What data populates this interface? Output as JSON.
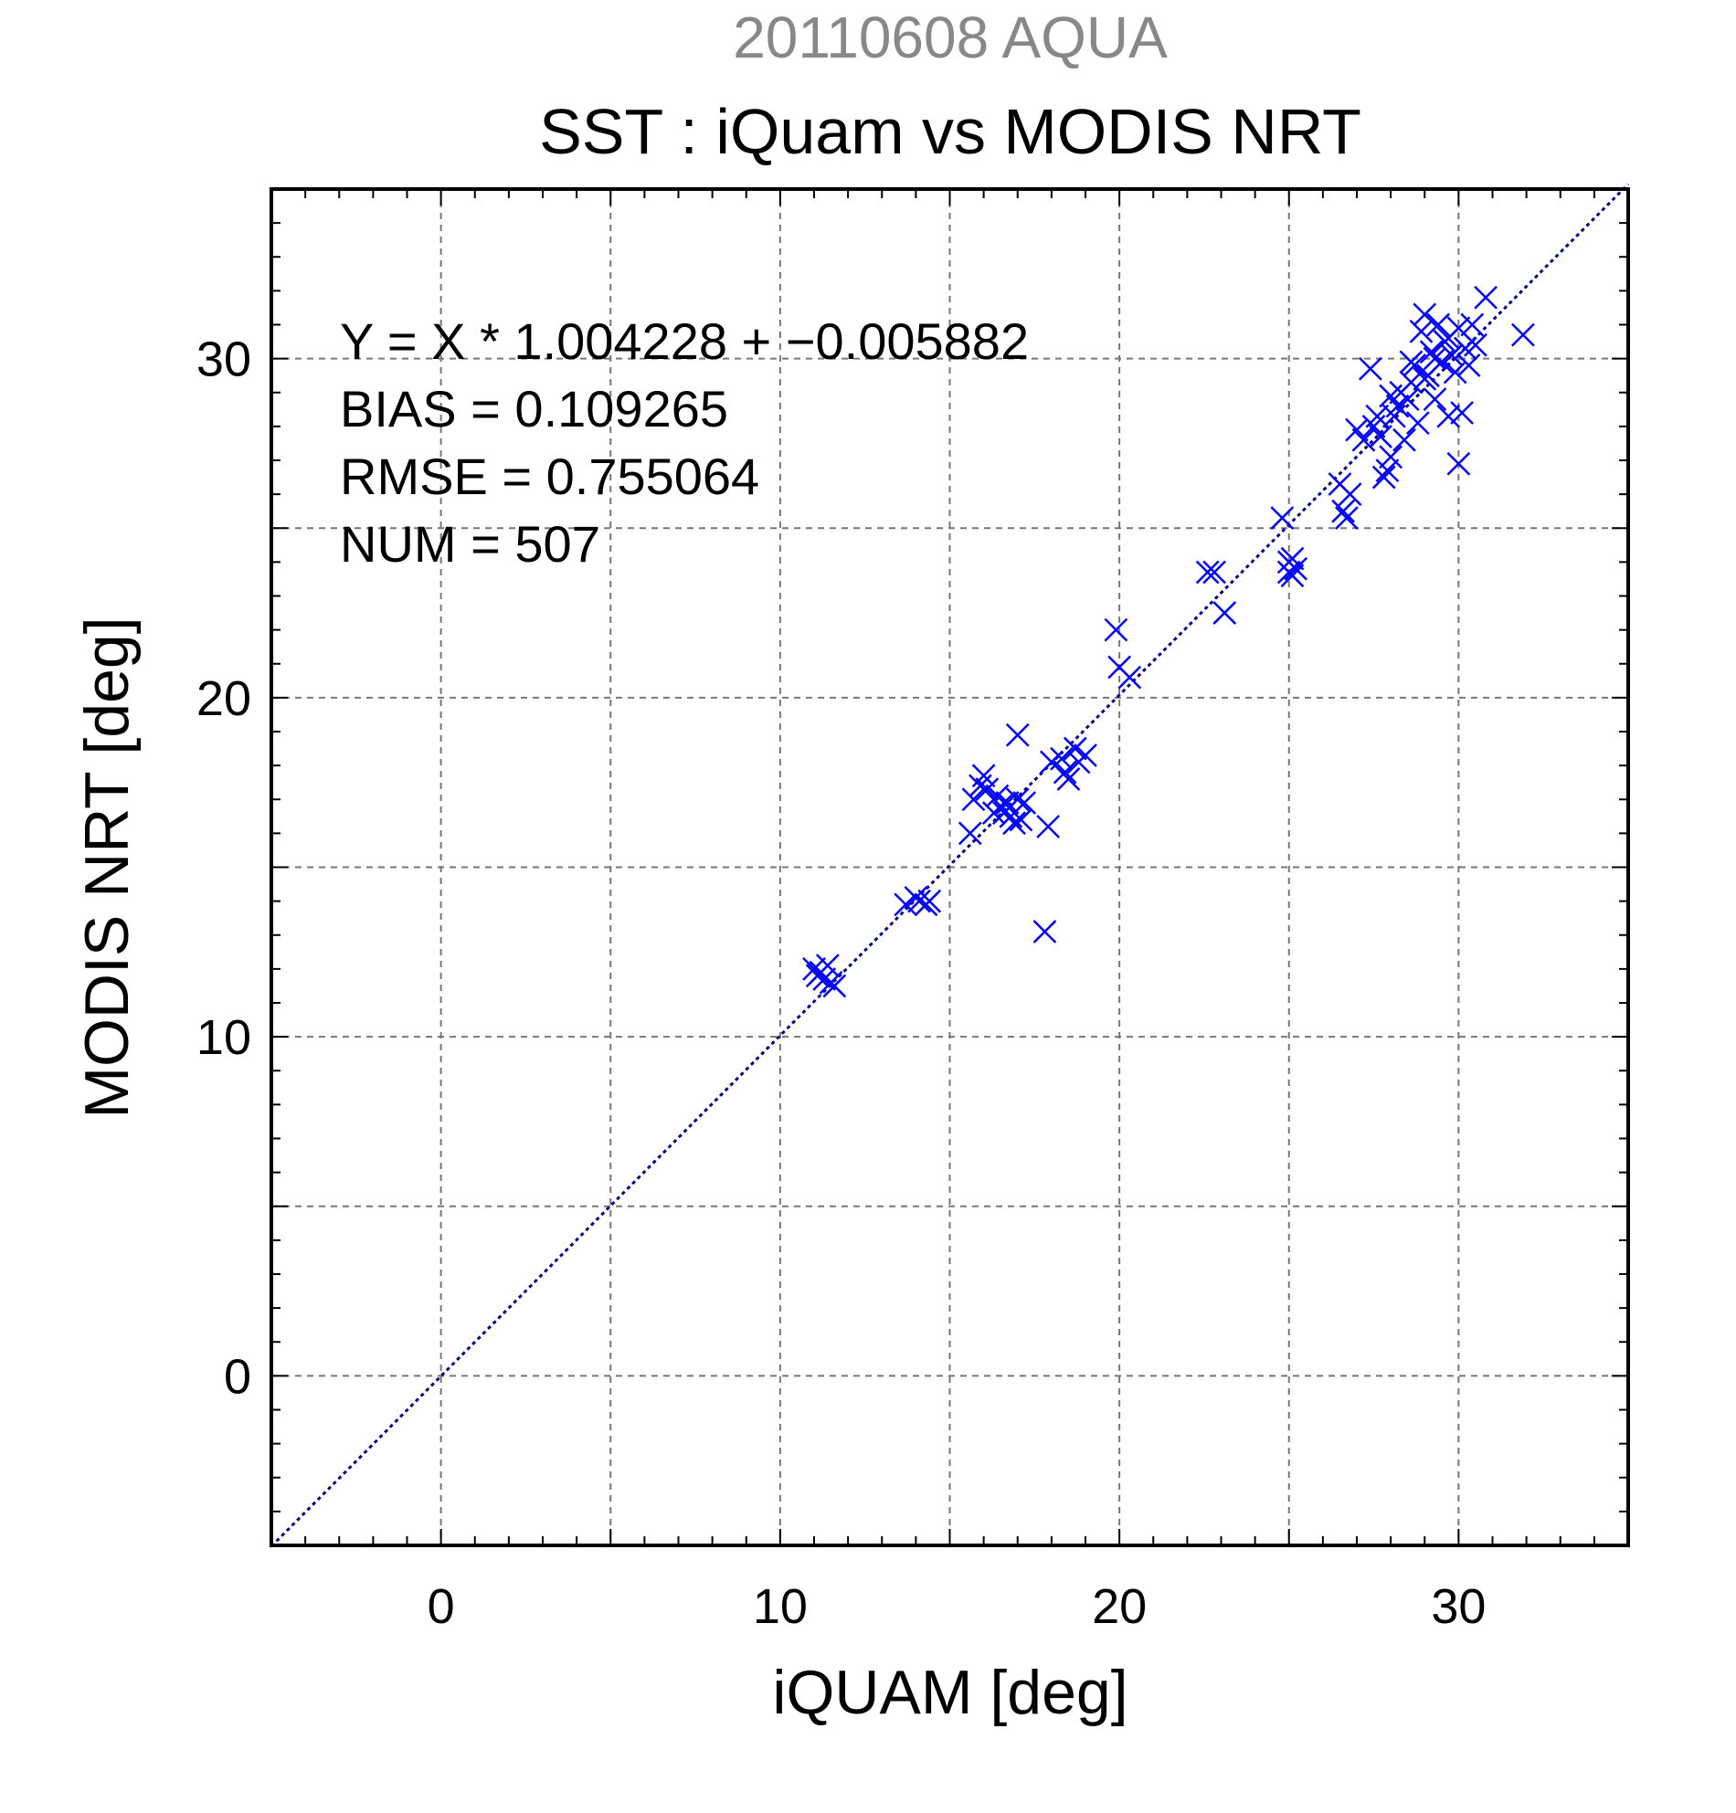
{
  "chart_data": {
    "type": "scatter",
    "suptitle": "20110608 AQUA",
    "title": "SST : iQuam vs MODIS NRT",
    "xlabel": "iQUAM [deg]",
    "ylabel": "MODIS NRT [deg]",
    "xlim": [
      -5,
      35
    ],
    "ylim": [
      -5,
      35
    ],
    "xticks": [
      0,
      10,
      20,
      30
    ],
    "yticks": [
      0,
      10,
      20,
      30
    ],
    "grid": true,
    "grid_step": 5,
    "marker": "x",
    "annotations": [
      "Y = X * 1.004228 + −0.005882",
      "BIAS = 0.109265",
      "RMSE = 0.755064",
      "NUM = 507"
    ],
    "fit_line": {
      "slope": 1.004228,
      "intercept": -0.005882
    },
    "series": [
      {
        "marker_color": "#0000ff",
        "points": [
          [
            11.0,
            12.0
          ],
          [
            11.2,
            11.9
          ],
          [
            11.3,
            11.7
          ],
          [
            11.4,
            12.1
          ],
          [
            11.1,
            11.8
          ],
          [
            11.6,
            11.5
          ],
          [
            11.5,
            11.6
          ],
          [
            13.7,
            13.9
          ],
          [
            14.1,
            14.0
          ],
          [
            14.3,
            13.9
          ],
          [
            14.4,
            14.0
          ],
          [
            14.0,
            14.1
          ],
          [
            15.6,
            16.0
          ],
          [
            15.7,
            17.0
          ],
          [
            15.9,
            17.4
          ],
          [
            16.0,
            17.7
          ],
          [
            16.1,
            17.3
          ],
          [
            16.3,
            16.6
          ],
          [
            16.4,
            17.1
          ],
          [
            16.5,
            16.8
          ],
          [
            16.6,
            16.6
          ],
          [
            16.7,
            16.9
          ],
          [
            16.8,
            16.5
          ],
          [
            16.9,
            16.3
          ],
          [
            17.0,
            17.0
          ],
          [
            17.1,
            16.4
          ],
          [
            17.2,
            16.9
          ],
          [
            17.0,
            18.9
          ],
          [
            17.9,
            16.2
          ],
          [
            17.8,
            13.1
          ],
          [
            18.0,
            18.1
          ],
          [
            18.3,
            18.2
          ],
          [
            18.4,
            17.8
          ],
          [
            18.5,
            17.6
          ],
          [
            18.7,
            18.5
          ],
          [
            18.8,
            18.1
          ],
          [
            19.0,
            18.3
          ],
          [
            19.9,
            22.0
          ],
          [
            20.0,
            20.9
          ],
          [
            20.3,
            20.6
          ],
          [
            22.6,
            23.7
          ],
          [
            22.8,
            23.7
          ],
          [
            23.1,
            22.5
          ],
          [
            24.8,
            25.3
          ],
          [
            25.0,
            24.0
          ],
          [
            25.1,
            24.1
          ],
          [
            25.0,
            23.7
          ],
          [
            25.2,
            23.8
          ],
          [
            25.1,
            23.6
          ],
          [
            26.5,
            26.3
          ],
          [
            26.6,
            25.5
          ],
          [
            26.7,
            25.3
          ],
          [
            26.8,
            26.0
          ],
          [
            27.0,
            27.9
          ],
          [
            27.2,
            27.6
          ],
          [
            27.4,
            29.7
          ],
          [
            27.5,
            28.0
          ],
          [
            27.6,
            28.3
          ],
          [
            27.7,
            27.7
          ],
          [
            27.8,
            26.5
          ],
          [
            27.9,
            26.7
          ],
          [
            28.0,
            27.1
          ],
          [
            28.0,
            28.9
          ],
          [
            28.1,
            28.3
          ],
          [
            28.2,
            28.6
          ],
          [
            28.3,
            29.0
          ],
          [
            28.4,
            27.6
          ],
          [
            28.5,
            28.8
          ],
          [
            28.6,
            29.3
          ],
          [
            28.7,
            29.8
          ],
          [
            28.8,
            28.1
          ],
          [
            28.9,
            30.8
          ],
          [
            29.0,
            31.3
          ],
          [
            29.1,
            29.5
          ],
          [
            29.2,
            30.2
          ],
          [
            29.3,
            28.8
          ],
          [
            29.4,
            31.0
          ],
          [
            29.5,
            29.9
          ],
          [
            29.6,
            30.5
          ],
          [
            29.7,
            28.3
          ],
          [
            29.8,
            30.1
          ],
          [
            29.9,
            29.6
          ],
          [
            30.0,
            30.9
          ],
          [
            30.0,
            26.9
          ],
          [
            30.1,
            28.4
          ],
          [
            30.2,
            30.3
          ],
          [
            30.3,
            29.8
          ],
          [
            30.4,
            31.0
          ],
          [
            30.5,
            30.4
          ],
          [
            30.8,
            31.8
          ],
          [
            31.9,
            30.7
          ],
          [
            29.0,
            29.4
          ],
          [
            28.6,
            29.9
          ],
          [
            29.3,
            30.0
          ],
          [
            29.7,
            30.6
          ]
        ]
      }
    ]
  }
}
